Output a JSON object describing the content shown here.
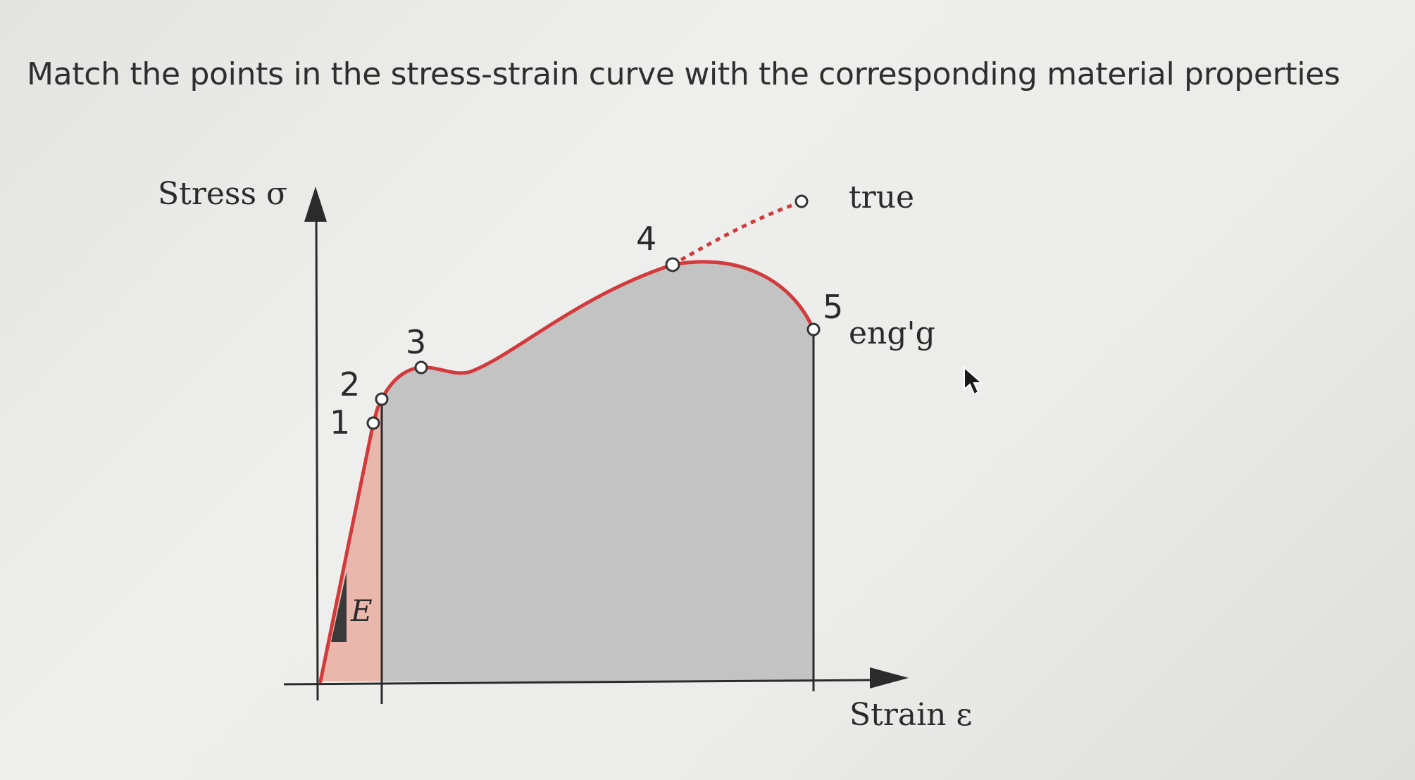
{
  "question": "Match the points in the stress-strain curve with the corresponding material properties",
  "diagram": {
    "y_axis_label": "Stress σ",
    "x_axis_label": "Strain ε",
    "modulus_label": "E",
    "true_curve_label": "true",
    "engineering_curve_label": "eng'g",
    "points": [
      {
        "label": "1"
      },
      {
        "label": "2"
      },
      {
        "label": "3"
      },
      {
        "label": "4"
      },
      {
        "label": "5"
      }
    ],
    "colors": {
      "curve": "#d23a3c",
      "elastic_fill": "#eab7ac",
      "plastic_fill": "#c3c3c3",
      "axis": "#2b2b2b"
    }
  }
}
